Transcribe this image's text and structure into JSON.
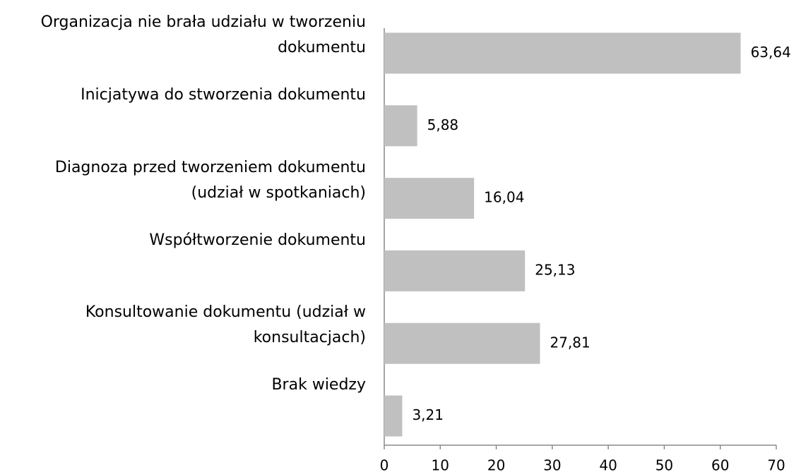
{
  "chart_data": {
    "type": "bar",
    "orientation": "horizontal",
    "categories": [
      "Organizacja nie brała udziału w tworzeniu dokumentu",
      "Inicjatywa do stworzenia dokumentu",
      "Diagnoza przed tworzeniem dokumentu (udział w spotkaniach)",
      "Współtworzenie dokumentu",
      "Konsultowanie dokumentu (udział w konsultacjach)",
      "Brak wiedzy"
    ],
    "values": [
      63.64,
      5.88,
      16.04,
      25.13,
      27.81,
      3.21
    ],
    "value_labels": [
      "63,64",
      "5,88",
      "16,04",
      "25,13",
      "27,81",
      "3,21"
    ],
    "color": "#c0c0c0",
    "xlim": [
      0,
      70
    ],
    "xticks": [
      0,
      10,
      20,
      30,
      40,
      50,
      60,
      70
    ],
    "grid": false
  }
}
